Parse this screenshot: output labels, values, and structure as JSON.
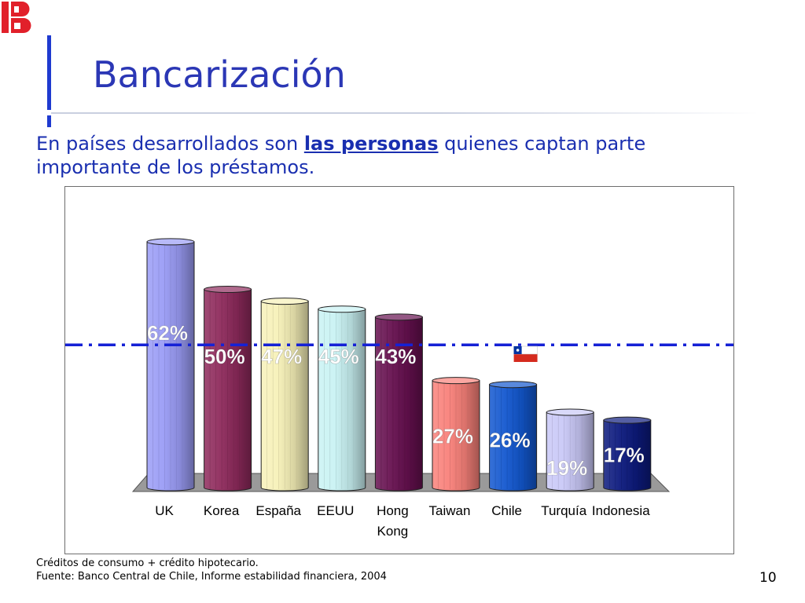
{
  "slide": {
    "title": "Bancarización",
    "subtitle_pre": "En países desarrollados son ",
    "subtitle_emph": "las personas",
    "subtitle_post": " quienes captan parte importante de los préstamos.",
    "footnote_1": "Créditos de consumo + crédito hipotecario.",
    "footnote_2": "Fuente: Banco Central de Chile, Informe estabilidad financiera, 2004",
    "page_number": "10",
    "logo_icon": "ib-logo-icon"
  },
  "chart_data": {
    "type": "bar",
    "style": "3d-cylinder",
    "title": "",
    "xlabel": "",
    "ylabel": "",
    "ylim": [
      0,
      70
    ],
    "grid": false,
    "legend": "none",
    "categories": [
      "UK",
      "Korea",
      "España",
      "EEUU",
      "Hong Kong",
      "Taiwan",
      "Chile",
      "Turquía",
      "Indonesia"
    ],
    "values": [
      62,
      50,
      47,
      45,
      43,
      27,
      26,
      19,
      17
    ],
    "labels": [
      "62%",
      "50%",
      "47%",
      "45%",
      "43%",
      "27%",
      "26%",
      "19%",
      "17%"
    ],
    "colors": [
      "#9a9cf5",
      "#8e2a5c",
      "#f7f1b8",
      "#c9f2f3",
      "#66104f",
      "#f9817a",
      "#1257cf",
      "#c9c8f7",
      "#0c1a7d"
    ],
    "label_colors": [
      "#ffffff",
      "#ffffff",
      "#ffffff",
      "#ffffff",
      "#ffffff",
      "#ffffff",
      "#ffffff",
      "#ffffff",
      "#ffffff"
    ],
    "reference_line": {
      "value": 36,
      "style": "dash-dot",
      "color": "#1521d6"
    },
    "highlight": {
      "category": "Chile",
      "icon": "chile-flag-icon"
    }
  }
}
